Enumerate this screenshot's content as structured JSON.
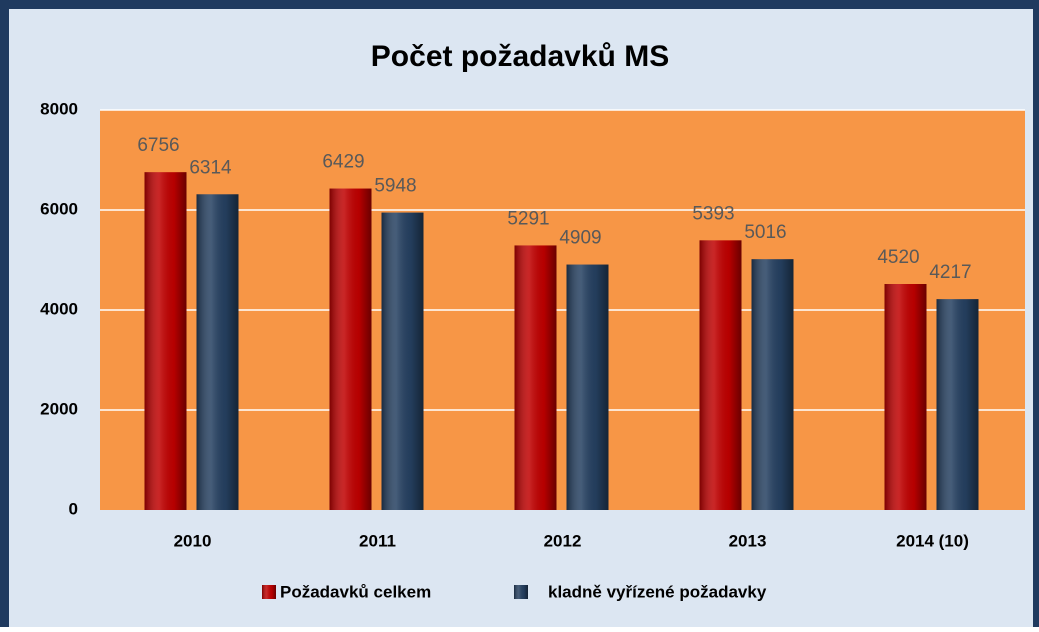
{
  "chart_data": {
    "type": "bar",
    "title": "Počet požadavků MS",
    "categories": [
      "2010",
      "2011",
      "2012",
      "2013",
      "2014 (10)"
    ],
    "series": [
      {
        "name": "Požadavků celkem",
        "color": "#c00000",
        "values": [
          6756,
          6429,
          5291,
          5393,
          4520
        ]
      },
      {
        "name": "kladně vyřízené požadavky",
        "color": "#254061",
        "values": [
          6314,
          5948,
          4909,
          5016,
          4217
        ]
      }
    ],
    "ylim": [
      0,
      8000
    ],
    "yticks": [
      0,
      2000,
      4000,
      6000,
      8000
    ],
    "grid": true,
    "legend": "bottom"
  }
}
